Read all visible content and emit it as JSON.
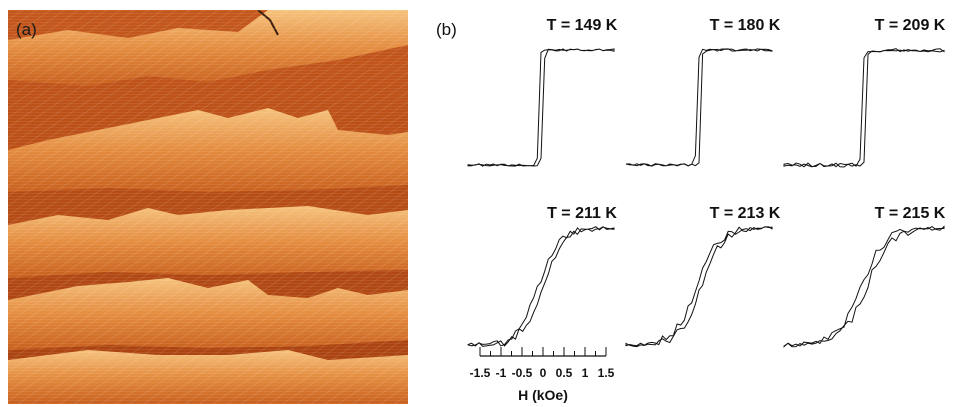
{
  "panel_a": {
    "label": "(a)"
  },
  "panel_b": {
    "label": "(b)",
    "loops": [
      {
        "temperature": "T = 149 K",
        "shape": "square"
      },
      {
        "temperature": "T = 180 K",
        "shape": "square"
      },
      {
        "temperature": "T = 209 K",
        "shape": "square-noisy"
      },
      {
        "temperature": "T = 211 K",
        "shape": "slanted"
      },
      {
        "temperature": "T = 213 K",
        "shape": "slanted"
      },
      {
        "temperature": "T = 215 K",
        "shape": "slanted"
      }
    ],
    "axis": {
      "title": "H (kOe)",
      "ticks": [
        "-1.5",
        "-1",
        "-0.5",
        "0",
        "0.5",
        "1",
        "1.5"
      ],
      "range": [
        -1.5,
        1.5
      ]
    }
  }
}
